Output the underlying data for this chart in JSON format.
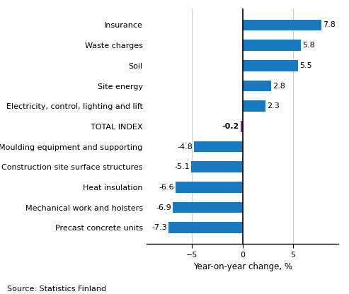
{
  "categories": [
    "Precast concrete units",
    "Mechanical work and hoisters",
    "Heat insulation",
    "Construction site surface structures",
    "Moulding equipment and supporting",
    "TOTAL INDEX",
    "Electricity, control, lighting and lift",
    "Site energy",
    "Soil",
    "Waste charges",
    "Insurance"
  ],
  "values": [
    -7.3,
    -6.9,
    -6.6,
    -5.1,
    -4.8,
    -0.2,
    2.3,
    2.8,
    5.5,
    5.8,
    7.8
  ],
  "bar_color": "#1a7abf",
  "total_index_color": "#7b2d8b",
  "xlabel": "Year-on-year change, %",
  "source": "Source: Statistics Finland",
  "xlim": [
    -9.5,
    9.5
  ],
  "xticks": [
    -5,
    0,
    5
  ],
  "bar_height": 0.55,
  "label_fontsize": 8,
  "value_fontsize": 8,
  "xlabel_fontsize": 8.5,
  "source_fontsize": 8,
  "grid_color": "#cccccc"
}
